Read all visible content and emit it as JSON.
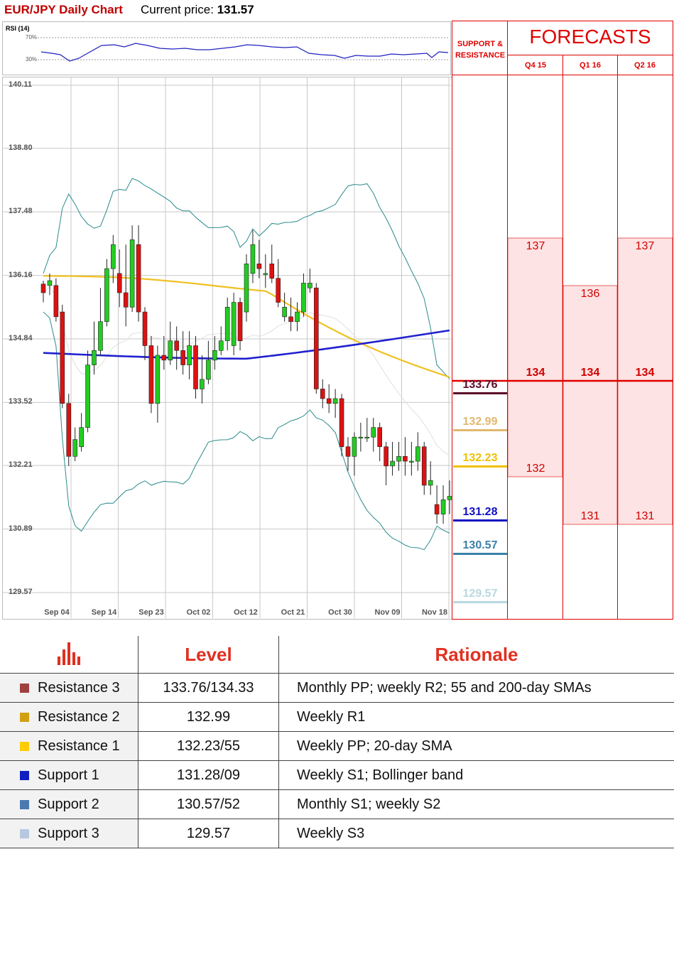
{
  "header": {
    "title": "EUR/JPY Daily Chart",
    "current_price_label": "Current price:",
    "current_price": "131.57"
  },
  "rsi": {
    "label": "RSI (14)",
    "levels": [
      "70%",
      "30%"
    ]
  },
  "chart_data": {
    "type": "candlestick",
    "title": "EUR/JPY Daily Chart",
    "y_ticks": [
      "140.11",
      "138.80",
      "137.48",
      "136.16",
      "134.84",
      "133.52",
      "132.21",
      "130.89",
      "129.57"
    ],
    "x_ticks": [
      "Sep 04",
      "Sep 14",
      "Sep 23",
      "Oct 02",
      "Oct 12",
      "Oct 21",
      "Oct 30",
      "Nov 09",
      "Nov 18"
    ],
    "ylim": [
      129.57,
      140.11
    ],
    "candles": [
      [
        135.98,
        135.8,
        136.05,
        135.6
      ],
      [
        135.95,
        136.05,
        136.2,
        135.75
      ],
      [
        135.95,
        135.3,
        136.1,
        135.2
      ],
      [
        135.4,
        133.5,
        135.55,
        133.4
      ],
      [
        133.5,
        132.4,
        133.7,
        132.2
      ],
      [
        132.4,
        132.75,
        133.0,
        132.3
      ],
      [
        132.6,
        133.0,
        133.3,
        132.5
      ],
      [
        133.0,
        134.3,
        134.6,
        132.9
      ],
      [
        134.3,
        134.6,
        135.2,
        134.1
      ],
      [
        134.6,
        135.2,
        135.9,
        134.5
      ],
      [
        135.2,
        136.3,
        136.5,
        135.1
      ],
      [
        136.3,
        136.8,
        137.0,
        136.0
      ],
      [
        136.2,
        135.8,
        136.7,
        135.5
      ],
      [
        135.8,
        135.5,
        136.8,
        135.1
      ],
      [
        135.5,
        136.9,
        137.2,
        135.4
      ],
      [
        136.8,
        135.4,
        137.2,
        135.2
      ],
      [
        135.4,
        134.7,
        135.5,
        134.4
      ],
      [
        134.7,
        133.5,
        134.9,
        133.3
      ],
      [
        133.5,
        134.5,
        134.7,
        133.1
      ],
      [
        134.5,
        134.4,
        134.9,
        134.2
      ],
      [
        134.4,
        134.8,
        135.2,
        134.3
      ],
      [
        134.8,
        134.6,
        135.1,
        134.2
      ],
      [
        134.6,
        134.3,
        135.0,
        134.1
      ],
      [
        134.3,
        134.7,
        135.0,
        134.0
      ],
      [
        134.7,
        133.8,
        134.9,
        133.6
      ],
      [
        133.8,
        134.0,
        134.5,
        133.5
      ],
      [
        134.0,
        134.4,
        134.8,
        133.9
      ],
      [
        134.4,
        134.6,
        134.9,
        134.2
      ],
      [
        134.6,
        134.8,
        135.1,
        134.5
      ],
      [
        134.8,
        135.5,
        135.7,
        134.6
      ],
      [
        134.7,
        135.6,
        135.8,
        134.5
      ],
      [
        135.6,
        134.8,
        135.7,
        134.6
      ],
      [
        135.4,
        136.4,
        136.6,
        135.2
      ],
      [
        136.2,
        136.8,
        137.1,
        136.0
      ],
      [
        136.4,
        136.3,
        136.9,
        136.1
      ],
      [
        136.2,
        136.2,
        136.6,
        135.9
      ],
      [
        136.4,
        136.1,
        136.8,
        136.0
      ],
      [
        136.1,
        135.6,
        136.5,
        135.5
      ],
      [
        135.3,
        135.5,
        135.8,
        135.2
      ],
      [
        135.3,
        135.2,
        135.7,
        135.0
      ],
      [
        135.2,
        135.4,
        135.6,
        135.0
      ],
      [
        135.4,
        136.0,
        136.2,
        135.3
      ],
      [
        135.9,
        136.0,
        136.3,
        135.8
      ],
      [
        135.9,
        133.8,
        136.0,
        133.7
      ],
      [
        133.8,
        133.6,
        134.0,
        133.4
      ],
      [
        133.6,
        133.5,
        133.9,
        133.3
      ],
      [
        133.5,
        133.6,
        133.8,
        133.2
      ],
      [
        133.6,
        132.6,
        133.7,
        132.4
      ],
      [
        132.6,
        132.4,
        132.8,
        132.1
      ],
      [
        132.4,
        132.8,
        132.9,
        132.0
      ],
      [
        132.8,
        132.8,
        133.1,
        132.5
      ],
      [
        132.8,
        132.8,
        133.2,
        132.7
      ],
      [
        132.8,
        133.0,
        133.2,
        132.5
      ],
      [
        133.0,
        132.6,
        133.1,
        132.3
      ],
      [
        132.6,
        132.2,
        132.7,
        131.8
      ],
      [
        132.2,
        132.3,
        132.7,
        132.0
      ],
      [
        132.3,
        132.4,
        132.7,
        132.1
      ],
      [
        132.4,
        132.3,
        132.8,
        132.0
      ],
      [
        132.3,
        132.3,
        132.7,
        132.0
      ],
      [
        132.3,
        132.6,
        132.9,
        132.1
      ],
      [
        132.6,
        131.8,
        132.7,
        131.6
      ],
      [
        131.8,
        131.9,
        132.3,
        131.6
      ],
      [
        131.4,
        131.2,
        131.8,
        131.0
      ],
      [
        131.2,
        131.5,
        131.8,
        131.0
      ],
      [
        131.5,
        131.57,
        131.9,
        131.2
      ]
    ]
  },
  "support_resistance": {
    "title": "SUPPORT & RESISTANCE",
    "levels": [
      {
        "value": "133.76",
        "color": "#5b0a2a"
      },
      {
        "value": "132.99",
        "color": "#e0b870"
      },
      {
        "value": "132.23",
        "color": "#f0c000"
      },
      {
        "value": "131.28",
        "color": "#1010c0"
      },
      {
        "value": "130.57",
        "color": "#3a80a8"
      },
      {
        "value": "129.57",
        "color": "#b8d8e0"
      }
    ]
  },
  "forecasts": {
    "title": "FORECASTS",
    "columns": [
      {
        "label": "Q4 15",
        "high": "137",
        "mid": "134",
        "low": "132"
      },
      {
        "label": "Q1 16",
        "high": "136",
        "mid": "134",
        "low": "131"
      },
      {
        "label": "Q2 16",
        "high": "137",
        "mid": "134",
        "low": "131"
      }
    ]
  },
  "levels_table": {
    "headers": {
      "level": "Level",
      "rationale": "Rationale"
    },
    "rows": [
      {
        "name": "Resistance 3",
        "level": "133.76/134.33",
        "rationale": "Monthly PP; weekly R2; 55 and 200-day SMAs",
        "color": "#a04040"
      },
      {
        "name": "Resistance 2",
        "level": "132.99",
        "rationale": "Weekly R1",
        "color": "#d0a010"
      },
      {
        "name": "Resistance 1",
        "level": "132.23/55",
        "rationale": "Weekly PP; 20-day SMA",
        "color": "#ffcc00"
      },
      {
        "name": "Support 1",
        "level": "131.28/09",
        "rationale": "Weekly S1; Bollinger band",
        "color": "#1020c0"
      },
      {
        "name": "Support 2",
        "level": "130.57/52",
        "rationale": "Monthly S1; weekly S2",
        "color": "#4a7ab0"
      },
      {
        "name": "Support 3",
        "level": "129.57",
        "rationale": "Weekly S3",
        "color": "#b8c8e0"
      }
    ]
  }
}
